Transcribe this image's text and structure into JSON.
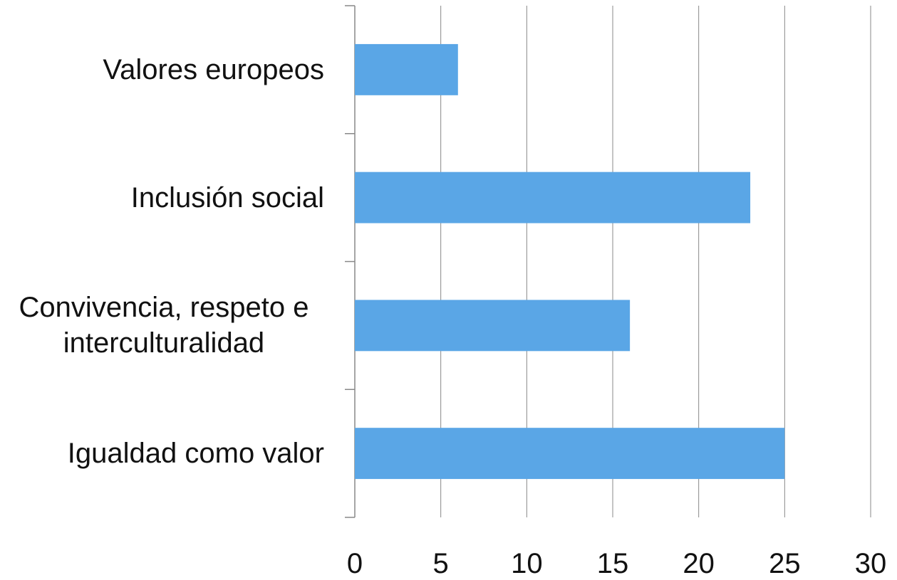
{
  "chart_data": {
    "type": "hbar",
    "categories": [
      "Valores europeos",
      "Inclusión social",
      "Convivencia, respeto e interculturalidad",
      "Igualdad como valor"
    ],
    "values": [
      6,
      23,
      16,
      25
    ],
    "color": "#5aa6e6",
    "xlim": [
      0,
      30
    ],
    "xticks": [
      0,
      5,
      10,
      15,
      20,
      25,
      30
    ],
    "grid": true
  }
}
